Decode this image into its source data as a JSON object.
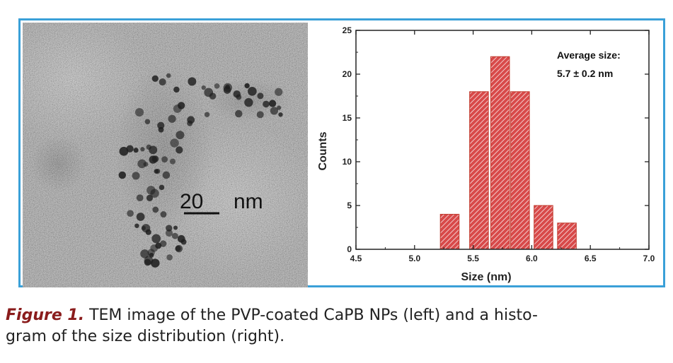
{
  "figure": {
    "label": "Figure 1.",
    "caption_line1": " TEM image of the PVP-coated CaPB NPs (left) and a histo-",
    "caption_line2": "gram of the size distribution (right)."
  },
  "tem_image": {
    "scale_bar_value": "20",
    "scale_bar_unit": "nm"
  },
  "colors": {
    "frame": "#3aa0d8",
    "bar_fill": "#d84a4a",
    "bar_hatch": "#ffffff",
    "caption_label": "#8a1c1c"
  },
  "chart_data": {
    "type": "bar",
    "title": "",
    "xlabel": "Size (nm)",
    "ylabel": "Counts",
    "xlim": [
      4.5,
      7.0
    ],
    "ylim": [
      0,
      25
    ],
    "x_ticks": [
      "4.5",
      "5.0",
      "5.5",
      "6.0",
      "6.5",
      "7.0"
    ],
    "y_ticks": [
      "0",
      "5",
      "10",
      "15",
      "20",
      "25"
    ],
    "bin_width": 0.16,
    "bins": [
      {
        "center": 5.3,
        "count": 4
      },
      {
        "center": 5.55,
        "count": 18
      },
      {
        "center": 5.73,
        "count": 22
      },
      {
        "center": 5.9,
        "count": 18
      },
      {
        "center": 6.1,
        "count": 5
      },
      {
        "center": 6.3,
        "count": 3
      }
    ],
    "annotation_line1": "Average size:",
    "annotation_line2": "5.7 ± 0.2 nm",
    "grid": false,
    "legend": "none"
  }
}
